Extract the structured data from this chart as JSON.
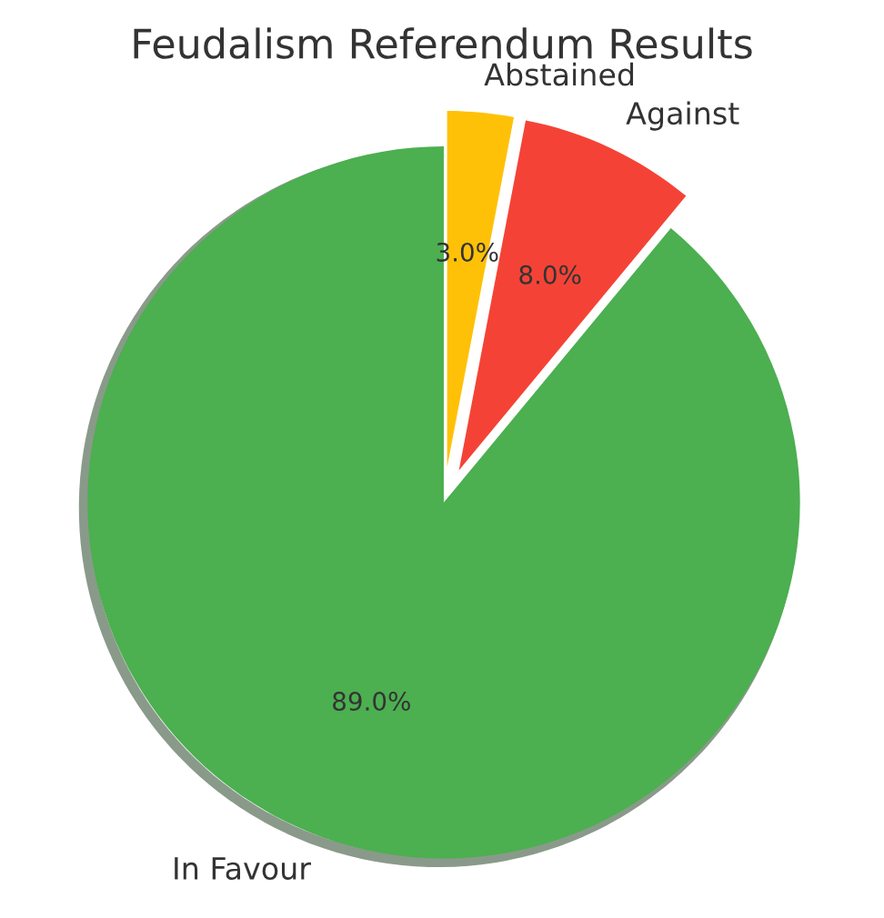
{
  "chart_data": {
    "type": "pie",
    "title": "Feudalism Referendum Results",
    "categories": [
      "In Favour",
      "Against",
      "Abstained"
    ],
    "values": [
      89,
      8,
      3
    ],
    "value_labels": [
      "89.0%",
      "8.0%",
      "3.0%"
    ],
    "colors": [
      "#4caf50",
      "#f44336",
      "#ffc107"
    ],
    "legend": false
  }
}
